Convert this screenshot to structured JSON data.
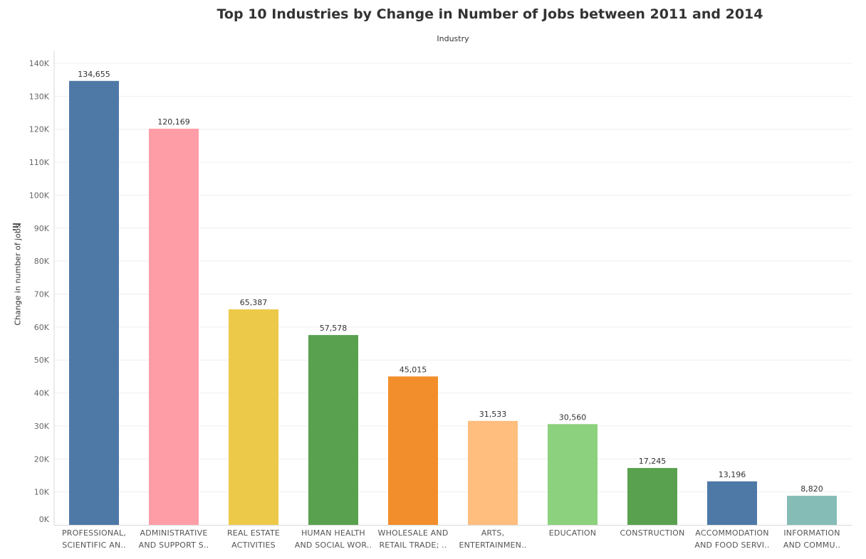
{
  "chart_data": {
    "type": "bar",
    "title": "Top 10 Industries by Change in Number of Jobs between 2011 and 2014",
    "xlabel": "Industry",
    "ylabel": "Change in number of jobs",
    "ylim": [
      0,
      140000
    ],
    "yticks": [
      "0K",
      "10K",
      "20K",
      "30K",
      "40K",
      "50K",
      "60K",
      "70K",
      "80K",
      "90K",
      "100K",
      "110K",
      "120K",
      "130K",
      "140K"
    ],
    "grid": true,
    "categories": [
      [
        "PROFESSIONAL,",
        "SCIENTIFIC AN.."
      ],
      [
        "ADMINISTRATIVE",
        "AND SUPPORT S.."
      ],
      [
        "REAL ESTATE",
        "ACTIVITIES"
      ],
      [
        "HUMAN HEALTH",
        "AND SOCIAL WOR.."
      ],
      [
        "WHOLESALE AND",
        "RETAIL TRADE; .."
      ],
      [
        "ARTS,",
        "ENTERTAINMEN.."
      ],
      [
        "EDUCATION"
      ],
      [
        "CONSTRUCTION"
      ],
      [
        "ACCOMMODATION",
        "AND FOOD SERVI.."
      ],
      [
        "INFORMATION",
        "AND COMMU.."
      ]
    ],
    "values": [
      134655,
      120169,
      65387,
      57578,
      45015,
      31533,
      30560,
      17245,
      13196,
      8820
    ],
    "data_labels": [
      "134,655",
      "120,169",
      "65,387",
      "57,578",
      "45,015",
      "31,533",
      "30,560",
      "17,245",
      "13,196",
      "8,820"
    ],
    "colors": [
      "#4e79a7",
      "#ff9da7",
      "#edc949",
      "#59a14f",
      "#f28e2b",
      "#ffbe7d",
      "#8cd17d",
      "#59a14f",
      "#4e79a7",
      "#86bcb6"
    ]
  }
}
